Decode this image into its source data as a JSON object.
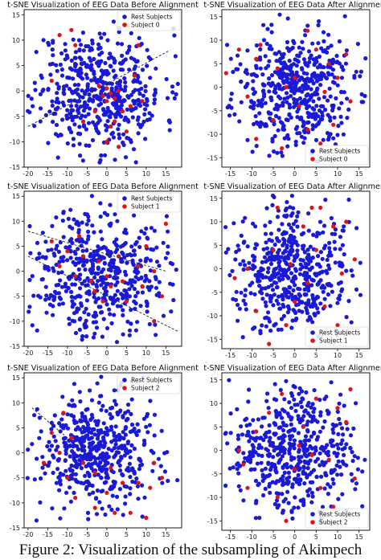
{
  "caption": "Figure 2: Visualization of the subsampling of Akimpech",
  "colors": {
    "rest": "#1a1ad6",
    "subject": "#e01414",
    "axis": "#000000",
    "guide": "#222222"
  },
  "chart_data": [
    {
      "type": "scatter",
      "title": "t-SNE Visualization of EEG Data Before Alignment",
      "xlim": [
        -21,
        19
      ],
      "ylim": [
        -15,
        16
      ],
      "xticks": [
        -20,
        -15,
        -10,
        -5,
        0,
        5,
        10,
        15
      ],
      "yticks": [
        -15,
        -10,
        -5,
        0,
        5,
        10,
        15
      ],
      "legend": {
        "position": "top-right",
        "entries": [
          "Rest Subjects",
          "Subject 0"
        ]
      },
      "series": [
        {
          "name": "Rest Subjects",
          "count": 500,
          "seed": 11
        },
        {
          "name": "Subject 0",
          "points": [
            [
              -9,
              12
            ],
            [
              -12,
              11
            ],
            [
              -8,
              9
            ],
            [
              5,
              13
            ],
            [
              8,
              9
            ],
            [
              -14,
              2
            ],
            [
              -2,
              1
            ],
            [
              0,
              0.5
            ],
            [
              1,
              -0.5
            ],
            [
              -1,
              -1
            ],
            [
              2,
              -1.5
            ],
            [
              3,
              0
            ],
            [
              0,
              -2
            ],
            [
              6,
              -3
            ],
            [
              4,
              -4
            ],
            [
              -3,
              -4
            ],
            [
              2,
              -6
            ],
            [
              1,
              -7
            ],
            [
              5,
              -8
            ],
            [
              0,
              -10
            ],
            [
              3,
              -11
            ],
            [
              7,
              3
            ],
            [
              -6,
              -6
            ],
            [
              9,
              -2
            ]
          ]
        }
      ],
      "guides": [
        [
          [
            -20,
            -7
          ],
          [
            16,
            8
          ]
        ]
      ]
    },
    {
      "type": "scatter",
      "title": "t-SNE Visualization of EEG Data After Alignment",
      "xlim": [
        -17,
        17.5
      ],
      "ylim": [
        -17,
        16.5
      ],
      "xticks": [
        -15,
        -10,
        -5,
        0,
        5,
        10,
        15
      ],
      "yticks": [
        -15,
        -10,
        -5,
        0,
        5,
        10,
        15
      ],
      "legend": {
        "position": "lower-right",
        "entries": [
          "Rest Subjects",
          "Subject 0"
        ]
      },
      "series": [
        {
          "name": "Rest Subjects",
          "count": 500,
          "seed": 23
        },
        {
          "name": "Subject 0",
          "points": [
            [
              -16,
              3
            ],
            [
              -9,
              6
            ],
            [
              -8,
              9
            ],
            [
              -11,
              -2
            ],
            [
              3,
              12
            ],
            [
              5,
              8
            ],
            [
              8,
              5
            ],
            [
              10,
              2
            ],
            [
              12,
              7
            ],
            [
              13,
              -3
            ],
            [
              -2,
              0
            ],
            [
              0,
              2
            ],
            [
              1,
              -4
            ],
            [
              -5,
              -7
            ],
            [
              -9,
              -11
            ],
            [
              3,
              -9
            ],
            [
              6,
              -12
            ],
            [
              -3,
              -13
            ],
            [
              7,
              -1
            ],
            [
              -4,
              4
            ],
            [
              9,
              -8
            ],
            [
              -13,
              8
            ]
          ]
        }
      ],
      "guides": []
    },
    {
      "type": "scatter",
      "title": "t-SNE Visualization of EEG Data Before Alignment",
      "xlim": [
        -21,
        19
      ],
      "ylim": [
        -15,
        16
      ],
      "xticks": [
        -20,
        -15,
        -10,
        -5,
        0,
        5,
        10,
        15
      ],
      "yticks": [
        -15,
        -10,
        -5,
        0,
        5,
        10,
        15
      ],
      "legend": {
        "position": "top-right",
        "entries": [
          "Rest Subjects",
          "Subject 1"
        ]
      },
      "series": [
        {
          "name": "Rest Subjects",
          "count": 500,
          "seed": 37
        },
        {
          "name": "Subject 1",
          "points": [
            [
              15,
              9.5
            ],
            [
              -14,
              6
            ],
            [
              -10,
              4
            ],
            [
              -6,
              3
            ],
            [
              -2,
              2
            ],
            [
              3,
              3
            ],
            [
              8,
              1
            ],
            [
              12,
              0
            ],
            [
              -8,
              -1
            ],
            [
              -4,
              -2
            ],
            [
              0,
              -1
            ],
            [
              4,
              -2
            ],
            [
              9,
              -3
            ],
            [
              -3,
              -4
            ],
            [
              1,
              -3
            ],
            [
              5,
              -6
            ],
            [
              -12,
              1
            ],
            [
              14,
              -5
            ],
            [
              -7,
              7
            ],
            [
              10,
              5
            ],
            [
              12,
              -10
            ],
            [
              -1,
              -6
            ]
          ]
        }
      ],
      "guides": [
        [
          [
            -20,
            8
          ],
          [
            15,
            0
          ]
        ],
        [
          [
            -20,
            3
          ],
          [
            18,
            -12
          ]
        ]
      ]
    },
    {
      "type": "scatter",
      "title": "t-SNE Visualization of EEG Data After Alignment",
      "xlim": [
        -17,
        17.5
      ],
      "ylim": [
        -17,
        16.5
      ],
      "xticks": [
        -15,
        -10,
        -5,
        0,
        5,
        10,
        15
      ],
      "yticks": [
        -15,
        -10,
        -5,
        0,
        5,
        10,
        15
      ],
      "legend": {
        "position": "lower-right",
        "entries": [
          "Rest Subjects",
          "Subject 1"
        ]
      },
      "series": [
        {
          "name": "Rest Subjects",
          "count": 500,
          "seed": 41
        },
        {
          "name": "Subject 1",
          "points": [
            [
              4,
              13
            ],
            [
              6,
              13
            ],
            [
              -4,
              13
            ],
            [
              -11,
              0
            ],
            [
              -14,
              -2
            ],
            [
              -9,
              -9
            ],
            [
              0,
              -7
            ],
            [
              3,
              -3
            ],
            [
              5,
              4
            ],
            [
              9,
              9
            ],
            [
              12,
              10
            ],
            [
              11,
              -1
            ],
            [
              -2,
              -12
            ],
            [
              -6,
              -16
            ],
            [
              2,
              9
            ],
            [
              7,
              -8
            ],
            [
              -5,
              4
            ],
            [
              14,
              2
            ],
            [
              -1,
              1
            ],
            [
              10,
              -12
            ]
          ]
        }
      ],
      "guides": []
    },
    {
      "type": "scatter",
      "title": "t-SNE Visualization of EEG Data Before Alignment",
      "xlim": [
        -21,
        19
      ],
      "ylim": [
        -15,
        16
      ],
      "xticks": [
        -20,
        -15,
        -10,
        -5,
        0,
        5,
        10,
        15
      ],
      "yticks": [
        -15,
        -10,
        -5,
        0,
        5,
        10,
        15
      ],
      "legend": {
        "position": "top-right",
        "entries": [
          "Rest Subjects",
          "Subject 2"
        ]
      },
      "series": [
        {
          "name": "Rest Subjects",
          "count": 500,
          "seed": 53
        },
        {
          "name": "Subject 2",
          "points": [
            [
              -11,
              8
            ],
            [
              -14,
              4
            ],
            [
              -9,
              3
            ],
            [
              -12,
              0
            ],
            [
              -6,
              -2
            ],
            [
              -3,
              -4
            ],
            [
              1,
              -3
            ],
            [
              4,
              -6
            ],
            [
              8,
              -6
            ],
            [
              11,
              -7
            ],
            [
              14,
              -5
            ],
            [
              -8,
              -9
            ],
            [
              -3,
              -11
            ],
            [
              2,
              -12
            ],
            [
              6,
              -12
            ],
            [
              10,
              -13
            ],
            [
              -16,
              -2
            ],
            [
              0,
              -8
            ],
            [
              12,
              -2
            ],
            [
              -10,
              -5
            ]
          ]
        }
      ],
      "guides": [
        [
          [
            -19,
            9
          ],
          [
            -4,
            -1
          ]
        ]
      ]
    },
    {
      "type": "scatter",
      "title": "t-SNE Visualization of EEG Data After Alignment",
      "xlim": [
        -17,
        17.5
      ],
      "ylim": [
        -17,
        16.5
      ],
      "xticks": [
        -15,
        -10,
        -5,
        0,
        5,
        10,
        15
      ],
      "yticks": [
        -15,
        -10,
        -5,
        0,
        5,
        10,
        15
      ],
      "legend": {
        "position": "lower-right",
        "entries": [
          "Rest Subjects",
          "Subject 2"
        ]
      },
      "series": [
        {
          "name": "Rest Subjects",
          "count": 500,
          "seed": 67
        },
        {
          "name": "Subject 2",
          "points": [
            [
              13,
              13
            ],
            [
              10,
              9
            ],
            [
              12,
              6
            ],
            [
              -13,
              0
            ],
            [
              -12,
              -3
            ],
            [
              -9,
              4
            ],
            [
              -4,
              -10
            ],
            [
              -2,
              -15
            ],
            [
              0,
              -4
            ],
            [
              2,
              5
            ],
            [
              4,
              -1
            ],
            [
              6,
              -8
            ],
            [
              8,
              -2
            ],
            [
              -6,
              8
            ],
            [
              5,
              11
            ],
            [
              -11,
              -8
            ],
            [
              9,
              -12
            ],
            [
              1,
              1
            ],
            [
              14,
              -6
            ],
            [
              -3,
              12
            ]
          ]
        }
      ],
      "guides": []
    }
  ]
}
